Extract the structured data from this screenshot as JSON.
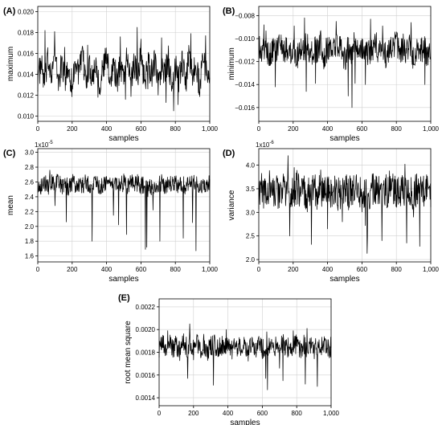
{
  "chart_data": [
    {
      "type": "line",
      "panel_label": "(A)",
      "xlabel": "samples",
      "ylabel": "maximum",
      "xlim": [
        0,
        1000
      ],
      "ylim": [
        0.0095,
        0.0205
      ],
      "xticks": [
        0,
        200,
        400,
        600,
        800,
        1000
      ],
      "xtick_labels": [
        "0",
        "200",
        "400",
        "600",
        "800",
        "1,000"
      ],
      "yticks": [
        0.01,
        0.012,
        0.014,
        0.016,
        0.018,
        0.02
      ],
      "ytick_labels": [
        "0.010",
        "0.012",
        "0.014",
        "0.016",
        "0.018",
        "0.020"
      ],
      "multiplier": "",
      "grid": true,
      "series": [
        {
          "baseline": 0.0139,
          "noise": 0.0014,
          "x": [
            0,
            20,
            40,
            60,
            80,
            100,
            120,
            140,
            160,
            180,
            200,
            220,
            240,
            260,
            280,
            300,
            320,
            340,
            360,
            380,
            400,
            420,
            440,
            460,
            480,
            500,
            520,
            540,
            560,
            580,
            600,
            620,
            640,
            660,
            680,
            700,
            720,
            740,
            760,
            780,
            800,
            820,
            840,
            860,
            880,
            900,
            920,
            940,
            960,
            980,
            1000
          ],
          "y": [
            0.0135,
            0.0158,
            0.0121,
            0.0169,
            0.0148,
            0.0176,
            0.0126,
            0.0161,
            0.0133,
            0.0154,
            0.0118,
            0.0167,
            0.0143,
            0.0172,
            0.0129,
            0.0157,
            0.0138,
            0.0166,
            0.0124,
            0.0151,
            0.0175,
            0.0132,
            0.0163,
            0.0127,
            0.0159,
            0.0141,
            0.0178,
            0.0122,
            0.0165,
            0.0136,
            0.0184,
            0.0128,
            0.016,
            0.0139,
            0.0171,
            0.0116,
            0.0155,
            0.0142,
            0.0169,
            0.0107,
            0.0152,
            0.0134,
            0.0163,
            0.0125,
            0.0177,
            0.0137,
            0.0158,
            0.0121,
            0.0166,
            0.0144,
            0.0138
          ],
          "spikes": [
            [
              42,
              0.0182
            ],
            [
              97,
              0.0181
            ],
            [
              155,
              0.0166
            ],
            [
              290,
              0.0168
            ],
            [
              350,
              0.0118
            ],
            [
              480,
              0.0176
            ],
            [
              510,
              0.0116
            ],
            [
              578,
              0.0185
            ],
            [
              640,
              0.0126
            ],
            [
              720,
              0.0175
            ],
            [
              745,
              0.0113
            ],
            [
              790,
              0.0105
            ],
            [
              815,
              0.0111
            ],
            [
              890,
              0.0179
            ],
            [
              975,
              0.0177
            ]
          ]
        }
      ]
    },
    {
      "type": "line",
      "panel_label": "(B)",
      "xlabel": "samples",
      "ylabel": "minimum",
      "xlim": [
        0,
        1000
      ],
      "ylim": [
        -0.0172,
        -0.0072
      ],
      "xticks": [
        0,
        200,
        400,
        600,
        800,
        1000
      ],
      "xtick_labels": [
        "0",
        "200",
        "400",
        "600",
        "800",
        "1,000"
      ],
      "yticks": [
        -0.016,
        -0.014,
        -0.012,
        -0.01,
        -0.008
      ],
      "ytick_labels": [
        "−0.016",
        "−0.014",
        "−0.012",
        "−0.010",
        "−0.008"
      ],
      "multiplier": "",
      "grid": true,
      "series": [
        {
          "baseline": -0.011,
          "noise": 0.0012,
          "x": [
            0,
            20,
            40,
            60,
            80,
            100,
            120,
            140,
            160,
            180,
            200,
            220,
            240,
            260,
            280,
            300,
            320,
            340,
            360,
            380,
            400,
            420,
            440,
            460,
            480,
            500,
            520,
            540,
            560,
            580,
            600,
            620,
            640,
            660,
            680,
            700,
            720,
            740,
            760,
            780,
            800,
            820,
            840,
            860,
            880,
            900,
            920,
            940,
            960,
            980,
            1000
          ],
          "y": [
            -0.0102,
            -0.0118,
            -0.0097,
            -0.0123,
            -0.0105,
            -0.0114,
            -0.0092,
            -0.0121,
            -0.0108,
            -0.0116,
            -0.0099,
            -0.0125,
            -0.0103,
            -0.0112,
            -0.0094,
            -0.0119,
            -0.0107,
            -0.0113,
            -0.0098,
            -0.0124,
            -0.0104,
            -0.0117,
            -0.0096,
            -0.0111,
            -0.0101,
            -0.0126,
            -0.0106,
            -0.0115,
            -0.0093,
            -0.012,
            -0.01,
            -0.0122,
            -0.0109,
            -0.0114,
            -0.0097,
            -0.0118,
            -0.0103,
            -0.0124,
            -0.0108,
            -0.0112,
            -0.0095,
            -0.0121,
            -0.0105,
            -0.0116,
            -0.0099,
            -0.0123,
            -0.0104,
            -0.0113,
            -0.0101,
            -0.0119,
            -0.0106
          ],
          "spikes": [
            [
              30,
              -0.0088
            ],
            [
              95,
              -0.0142
            ],
            [
              205,
              -0.0089
            ],
            [
              265,
              -0.0082
            ],
            [
              275,
              -0.0146
            ],
            [
              330,
              -0.0139
            ],
            [
              450,
              -0.0085
            ],
            [
              520,
              -0.015
            ],
            [
              542,
              -0.016
            ],
            [
              560,
              -0.0139
            ],
            [
              620,
              -0.014
            ],
            [
              650,
              -0.0083
            ],
            [
              720,
              -0.0089
            ],
            [
              885,
              -0.0086
            ],
            [
              965,
              -0.014
            ]
          ]
        }
      ]
    },
    {
      "type": "line",
      "panel_label": "(C)",
      "xlabel": "samples",
      "ylabel": "mean",
      "xlim": [
        0,
        1000
      ],
      "ylim": [
        1.52,
        3.05
      ],
      "xticks": [
        0,
        200,
        400,
        600,
        800,
        1000
      ],
      "xtick_labels": [
        "0",
        "200",
        "400",
        "600",
        "800",
        "1,000"
      ],
      "yticks": [
        1.6,
        1.8,
        2.0,
        2.2,
        2.4,
        2.6,
        2.8,
        3.0
      ],
      "ytick_labels": [
        "1.6",
        "1.8",
        "2.0",
        "2.2",
        "2.4",
        "2.6",
        "2.8",
        "3.0"
      ],
      "multiplier": "1x10",
      "multiplier_exp": "-5",
      "grid": true,
      "series": [
        {
          "baseline": 2.57,
          "noise": 0.12,
          "x": [
            0,
            20,
            40,
            60,
            80,
            100,
            120,
            140,
            160,
            180,
            200,
            220,
            240,
            260,
            280,
            300,
            320,
            340,
            360,
            380,
            400,
            420,
            440,
            460,
            480,
            500,
            520,
            540,
            560,
            580,
            600,
            620,
            640,
            660,
            680,
            700,
            720,
            740,
            760,
            780,
            800,
            820,
            840,
            860,
            880,
            900,
            920,
            940,
            960,
            980,
            1000
          ],
          "y": [
            2.58,
            2.52,
            2.63,
            2.49,
            2.61,
            2.55,
            2.66,
            2.51,
            2.59,
            2.47,
            2.62,
            2.54,
            2.6,
            2.5,
            2.64,
            2.56,
            2.53,
            2.62,
            2.48,
            2.59,
            2.57,
            2.65,
            2.51,
            2.58,
            2.53,
            2.61,
            2.49,
            2.63,
            2.55,
            2.6,
            2.52,
            2.57,
            2.64,
            2.5,
            2.58,
            2.54,
            2.62,
            2.48,
            2.6,
            2.56,
            2.63,
            2.51,
            2.59,
            2.53,
            2.61,
            2.55,
            2.66,
            2.5,
            2.58,
            2.54,
            2.6
          ],
          "spikes": [
            [
              70,
              2.76
            ],
            [
              100,
              2.28
            ],
            [
              165,
              2.06
            ],
            [
              315,
              1.8
            ],
            [
              440,
              2.15
            ],
            [
              470,
              2.02
            ],
            [
              515,
              1.89
            ],
            [
              625,
              1.69
            ],
            [
              633,
              1.72
            ],
            [
              640,
              2.4
            ],
            [
              670,
              2.22
            ],
            [
              710,
              1.8
            ],
            [
              845,
              1.84
            ],
            [
              900,
              2.05
            ],
            [
              920,
              1.67
            ]
          ]
        }
      ]
    },
    {
      "type": "line",
      "panel_label": "(D)",
      "xlabel": "samples",
      "ylabel": "variance",
      "xlim": [
        0,
        1000
      ],
      "ylim": [
        1.95,
        4.35
      ],
      "xticks": [
        0,
        200,
        400,
        600,
        800,
        1000
      ],
      "xtick_labels": [
        "0",
        "200",
        "400",
        "600",
        "800",
        "1,000"
      ],
      "yticks": [
        2.0,
        2.5,
        3.0,
        3.5,
        4.0
      ],
      "ytick_labels": [
        "2.0",
        "2.5",
        "3.0",
        "3.5",
        "4.0"
      ],
      "multiplier": "1x10",
      "multiplier_exp": "-6",
      "grid": true,
      "series": [
        {
          "baseline": 3.43,
          "noise": 0.36,
          "x": [
            0,
            20,
            40,
            60,
            80,
            100,
            120,
            140,
            160,
            180,
            200,
            220,
            240,
            260,
            280,
            300,
            320,
            340,
            360,
            380,
            400,
            420,
            440,
            460,
            480,
            500,
            520,
            540,
            560,
            580,
            600,
            620,
            640,
            660,
            680,
            700,
            720,
            740,
            760,
            780,
            800,
            820,
            840,
            860,
            880,
            900,
            920,
            940,
            960,
            980,
            1000
          ],
          "y": [
            3.4,
            3.58,
            3.22,
            3.66,
            3.31,
            3.52,
            3.18,
            3.61,
            3.35,
            3.49,
            3.26,
            3.7,
            3.38,
            3.55,
            3.2,
            3.47,
            3.63,
            3.29,
            3.51,
            3.36,
            3.68,
            3.24,
            3.57,
            3.33,
            3.45,
            3.72,
            3.28,
            3.54,
            3.39,
            3.64,
            3.3,
            3.5,
            3.21,
            3.59,
            3.42,
            3.67,
            3.27,
            3.53,
            3.34,
            3.62,
            3.25,
            3.48,
            3.69,
            3.32,
            3.56,
            3.23,
            3.6,
            3.37,
            3.46,
            3.71,
            3.41
          ],
          "spikes": [
            [
              170,
              4.2
            ],
            [
              180,
              2.5
            ],
            [
              205,
              3.95
            ],
            [
              305,
              2.32
            ],
            [
              360,
              3.9
            ],
            [
              400,
              2.65
            ],
            [
              485,
              2.8
            ],
            [
              620,
              2.72
            ],
            [
              630,
              2.13
            ],
            [
              632,
              2.47
            ],
            [
              715,
              2.4
            ],
            [
              760,
              3.88
            ],
            [
              850,
              4.02
            ],
            [
              860,
              2.35
            ],
            [
              900,
              2.9
            ],
            [
              935,
              2.28
            ]
          ]
        }
      ]
    },
    {
      "type": "line",
      "panel_label": "(E)",
      "xlabel": "samples",
      "ylabel": "root mean square",
      "xlim": [
        0,
        1000
      ],
      "ylim": [
        0.00133,
        0.00227
      ],
      "xticks": [
        0,
        200,
        400,
        600,
        800,
        1000
      ],
      "xtick_labels": [
        "0",
        "200",
        "400",
        "600",
        "800",
        "1,000"
      ],
      "yticks": [
        0.0014,
        0.0016,
        0.0018,
        0.002,
        0.0022
      ],
      "ytick_labels": [
        "0.0014",
        "0.0016",
        "0.0018",
        "0.0020",
        "0.0022"
      ],
      "multiplier": "",
      "grid": true,
      "series": [
        {
          "baseline": 0.00185,
          "noise": 9e-05,
          "x": [
            0,
            20,
            40,
            60,
            80,
            100,
            120,
            140,
            160,
            180,
            200,
            220,
            240,
            260,
            280,
            300,
            320,
            340,
            360,
            380,
            400,
            420,
            440,
            460,
            480,
            500,
            520,
            540,
            560,
            580,
            600,
            620,
            640,
            660,
            680,
            700,
            720,
            740,
            760,
            780,
            800,
            820,
            840,
            860,
            880,
            900,
            920,
            940,
            960,
            980,
            1000
          ],
          "y": [
            0.00183,
            0.0019,
            0.00178,
            0.00192,
            0.00181,
            0.00188,
            0.00176,
            0.00191,
            0.00184,
            0.00187,
            0.00179,
            0.00193,
            0.00182,
            0.00189,
            0.00177,
            0.00186,
            0.00191,
            0.0018,
            0.00188,
            0.00183,
            0.00192,
            0.00178,
            0.00187,
            0.00181,
            0.0019,
            0.00184,
            0.00176,
            0.00189,
            0.00182,
            0.00193,
            0.00179,
            0.00186,
            0.00188,
            0.00177,
            0.0019,
            0.00183,
            0.00191,
            0.0018,
            0.00187,
            0.00184,
            0.00192,
            0.00178,
            0.00189,
            0.00182,
            0.00186,
            0.00179,
            0.0019,
            0.00183,
            0.00188,
            0.00181,
            0.00185
          ],
          "spikes": [
            [
              50,
              0.00199
            ],
            [
              165,
              0.00157
            ],
            [
              178,
              0.00205
            ],
            [
              315,
              0.00151
            ],
            [
              390,
              0.002
            ],
            [
              620,
              0.00157
            ],
            [
              625,
              0.00198
            ],
            [
              630,
              0.00147
            ],
            [
              700,
              0.00166
            ],
            [
              720,
              0.00155
            ],
            [
              780,
              0.00199
            ],
            [
              850,
              0.00152
            ],
            [
              860,
              0.00201
            ],
            [
              920,
              0.0015
            ]
          ]
        }
      ]
    }
  ]
}
